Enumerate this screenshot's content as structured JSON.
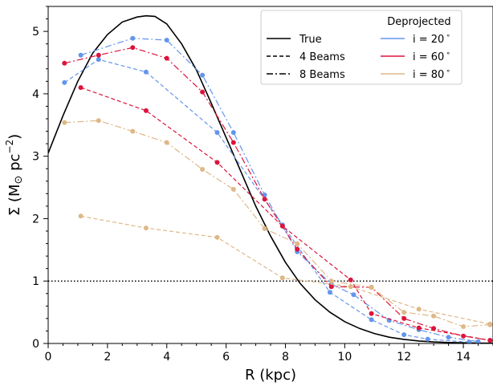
{
  "chart_data": {
    "type": "line",
    "xlabel": "R (kpc)",
    "ylabel": "Σ (M⊙ pc⁻²)",
    "xlim": [
      0,
      15
    ],
    "ylim": [
      0,
      5.4
    ],
    "xticks": [
      0,
      2,
      4,
      6,
      8,
      10,
      12,
      14
    ],
    "yticks": [
      0,
      1,
      2,
      3,
      4,
      5
    ],
    "reference_line": {
      "y": 1,
      "style": "dotted",
      "color": "#000000"
    },
    "legend": {
      "placement": "top-right",
      "deprojected_title": "Deprojected",
      "style_entries": [
        {
          "label": "True",
          "dash": "solid"
        },
        {
          "label": "4 Beams",
          "dash": "dashed"
        },
        {
          "label": "8 Beams",
          "dash": "dashdot"
        }
      ],
      "color_entries": [
        {
          "label": "i = 20$^\\circ$",
          "text": "i = 20",
          "color": "#6495ED"
        },
        {
          "label": "i = 60$^\\circ$",
          "text": "i = 60",
          "color": "#DC143C"
        },
        {
          "label": "i = 80$^\\circ$",
          "text": "i = 80",
          "color": "#DEB887"
        }
      ]
    },
    "true_curve": {
      "name": "True",
      "color": "#000000",
      "x": [
        0,
        0.5,
        1,
        1.5,
        2,
        2.5,
        3,
        3.3,
        3.6,
        4,
        4.5,
        5,
        5.5,
        6,
        6.5,
        7,
        7.5,
        8,
        8.5,
        9,
        9.5,
        10,
        10.5,
        11,
        11.5,
        12,
        12.5,
        13,
        13.5,
        14,
        14.5,
        15
      ],
      "y": [
        3.05,
        3.65,
        4.2,
        4.65,
        4.95,
        5.15,
        5.23,
        5.25,
        5.24,
        5.12,
        4.8,
        4.38,
        3.85,
        3.3,
        2.75,
        2.2,
        1.72,
        1.3,
        0.96,
        0.7,
        0.5,
        0.35,
        0.24,
        0.16,
        0.1,
        0.065,
        0.04,
        0.025,
        0.015,
        0.01,
        0.006,
        0.004
      ]
    },
    "series": [
      {
        "color": "#6495ED",
        "dash": "dashed",
        "x": [
          0.55,
          1.7,
          3.3,
          5.7,
          7.9,
          9.5,
          10.9,
          12.0,
          12.8,
          14.2
        ],
        "y": [
          4.18,
          4.55,
          4.35,
          3.38,
          1.9,
          0.82,
          0.38,
          0.14,
          0.07,
          0.02
        ]
      },
      {
        "color": "#6495ED",
        "dash": "dashdot",
        "x": [
          1.1,
          2.85,
          4.0,
          5.2,
          6.25,
          7.3,
          8.4,
          9.55,
          10.3,
          11.5,
          12.5,
          13.5,
          14.5
        ],
        "y": [
          4.62,
          4.89,
          4.86,
          4.3,
          3.38,
          2.38,
          1.47,
          0.95,
          0.78,
          0.37,
          0.22,
          0.1,
          0.03
        ]
      },
      {
        "color": "#DC143C",
        "dash": "dashed",
        "x": [
          1.1,
          3.3,
          5.7,
          7.9,
          10.2,
          10.9,
          12.5,
          14.9
        ],
        "y": [
          4.1,
          3.73,
          2.9,
          1.88,
          1.02,
          0.48,
          0.25,
          0.05
        ]
      },
      {
        "color": "#DC143C",
        "dash": "dashdot",
        "x": [
          0.55,
          1.7,
          2.85,
          4.0,
          5.2,
          6.25,
          7.3,
          8.4,
          9.55,
          10.9,
          12.0,
          13.0,
          14.0,
          14.9
        ],
        "y": [
          4.49,
          4.62,
          4.74,
          4.57,
          4.03,
          3.22,
          2.31,
          1.51,
          0.91,
          0.9,
          0.4,
          0.24,
          0.12,
          0.05
        ]
      },
      {
        "color": "#DEB887",
        "dash": "dashed",
        "x": [
          1.1,
          3.3,
          5.7,
          7.9,
          10.2,
          12.5,
          14.9
        ],
        "y": [
          2.04,
          1.85,
          1.7,
          1.05,
          0.91,
          0.55,
          0.31
        ]
      },
      {
        "color": "#DEB887",
        "dash": "dashdot",
        "x": [
          0.55,
          1.7,
          2.85,
          4.0,
          5.2,
          6.25,
          7.3,
          8.4,
          9.55,
          10.9,
          12.0,
          13.0,
          14.0,
          14.9
        ],
        "y": [
          3.54,
          3.57,
          3.4,
          3.22,
          2.79,
          2.47,
          1.84,
          1.6,
          1.0,
          0.9,
          0.5,
          0.44,
          0.27,
          0.3
        ]
      }
    ]
  }
}
